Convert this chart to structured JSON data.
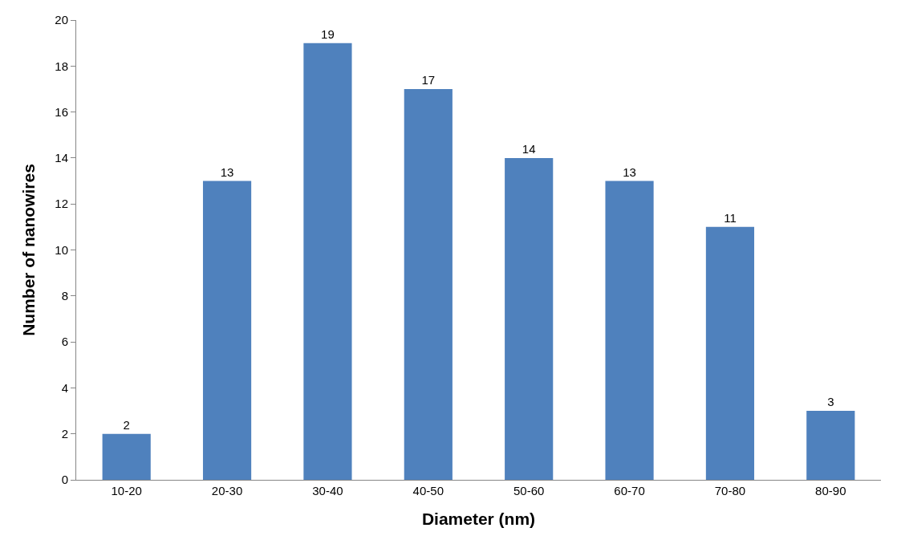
{
  "chart_data": {
    "type": "bar",
    "xlabel": "Diameter (nm)",
    "ylabel": "Number of nanowires",
    "categories": [
      "10-20",
      "20-30",
      "30-40",
      "40-50",
      "50-60",
      "60-70",
      "70-80",
      "80-90"
    ],
    "values": [
      2,
      13,
      19,
      17,
      14,
      13,
      11,
      3
    ],
    "color": "#4f81bd",
    "ylim": [
      0,
      20
    ],
    "yticks": [
      0,
      2,
      4,
      6,
      8,
      10,
      12,
      14,
      16,
      18,
      20
    ],
    "data_labels": true
  }
}
